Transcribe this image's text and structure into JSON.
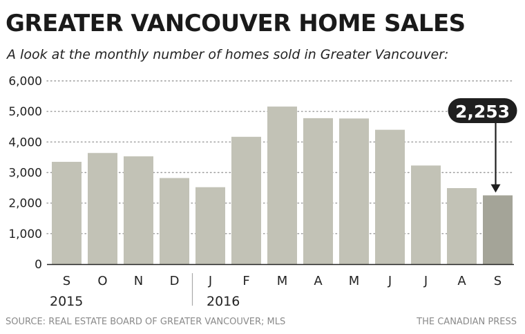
{
  "header": {
    "title": "GREATER VANCOUVER HOME SALES",
    "subtitle": "A look at the monthly number of homes sold in Greater Vancouver:"
  },
  "footer": {
    "source": "SOURCE: REAL ESTATE BOARD OF GREATER VANCOUVER; MLS",
    "credit": "THE CANADIAN PRESS"
  },
  "colors": {
    "bar": "#c2c2b6",
    "highlight_bar": "#a4a498",
    "callout_bg": "#1f1f1f",
    "callout_text": "#ffffff",
    "gridline": "#9a9a9a"
  },
  "chart_data": {
    "type": "bar",
    "title": "GREATER VANCOUVER HOME SALES",
    "subtitle": "A look at the monthly number of homes sold in Greater Vancouver:",
    "categories": [
      "S",
      "O",
      "N",
      "D",
      "J",
      "F",
      "M",
      "A",
      "M",
      "J",
      "J",
      "A",
      "S"
    ],
    "year_groups": [
      {
        "label": "2015",
        "start_index": 0,
        "end_index": 3
      },
      {
        "label": "2016",
        "start_index": 4,
        "end_index": 12
      }
    ],
    "values": [
      3350,
      3640,
      3530,
      2820,
      2520,
      4170,
      5160,
      4780,
      4770,
      4400,
      3230,
      2490,
      2253
    ],
    "ylim": [
      0,
      6000
    ],
    "yticks": [
      0,
      1000,
      2000,
      3000,
      4000,
      5000,
      6000
    ],
    "ytick_labels": [
      "0",
      "1,000",
      "2,000",
      "3,000",
      "4,000",
      "5,000",
      "6,000"
    ],
    "grid": true,
    "highlight_index": 12,
    "annotation": {
      "label": "2,253",
      "index": 12
    }
  }
}
